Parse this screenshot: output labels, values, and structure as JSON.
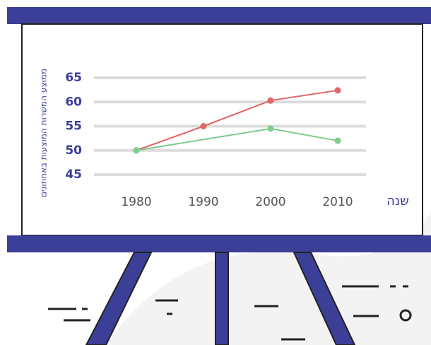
{
  "chart_data": {
    "type": "line",
    "y_label": "ממוצע המשרות המוצעות באחוזונים",
    "x_label": "שנה",
    "xlim": [
      1980,
      2010
    ],
    "xticks": [
      1980,
      1990,
      2000,
      2010
    ],
    "ylim": [
      45,
      65
    ],
    "yticks": [
      45,
      50,
      55,
      60,
      65
    ],
    "grid": true,
    "series": [
      {
        "color": "#e06666",
        "x": [
          1980,
          1990,
          2000,
          2010
        ],
        "values": [
          50,
          55,
          60.3,
          62.4
        ]
      },
      {
        "color": "#7fcb90",
        "x": [
          1980,
          2000,
          2010
        ],
        "values": [
          50,
          54.5,
          52
        ]
      }
    ]
  }
}
